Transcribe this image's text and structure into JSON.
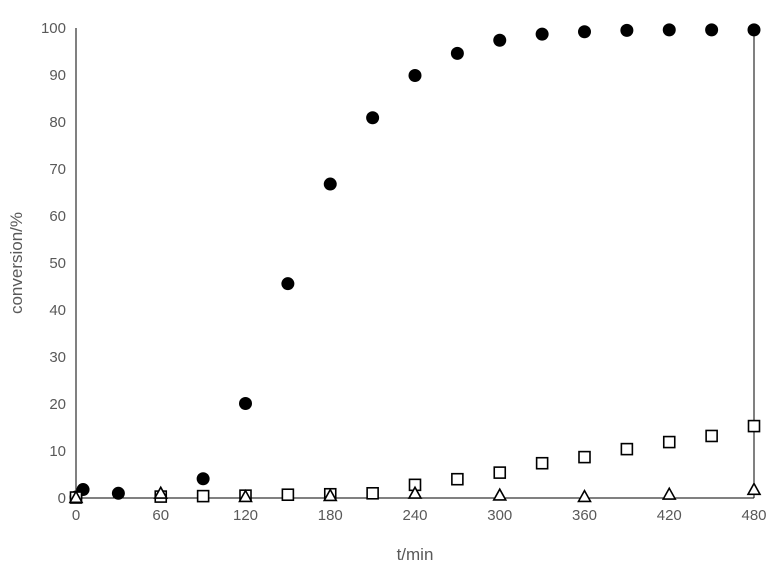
{
  "chart_data": {
    "type": "scatter",
    "title": "",
    "xlabel": "t/min",
    "ylabel": "conversion/%",
    "xlim": [
      0,
      480
    ],
    "ylim": [
      0,
      100
    ],
    "x_ticks": [
      0,
      60,
      120,
      180,
      240,
      300,
      360,
      420,
      480
    ],
    "y_ticks": [
      0,
      10,
      20,
      30,
      40,
      50,
      60,
      70,
      80,
      90,
      100
    ],
    "grid": false,
    "legend": "none",
    "series": [
      {
        "marker": "filled-circle",
        "color": "#000000",
        "points": [
          [
            0,
            0.2
          ],
          [
            5,
            1.8
          ],
          [
            30,
            1.0
          ],
          [
            90,
            4.1
          ],
          [
            120,
            20.1
          ],
          [
            150,
            45.6
          ],
          [
            180,
            66.8
          ],
          [
            210,
            80.9
          ],
          [
            240,
            89.9
          ],
          [
            270,
            94.6
          ],
          [
            300,
            97.4
          ],
          [
            330,
            98.7
          ],
          [
            360,
            99.2
          ],
          [
            390,
            99.5
          ],
          [
            420,
            99.6
          ],
          [
            450,
            99.6
          ],
          [
            480,
            99.6
          ]
        ]
      },
      {
        "marker": "open-square",
        "color": "#000000",
        "points": [
          [
            0,
            0.1
          ],
          [
            60,
            0.3
          ],
          [
            90,
            0.4
          ],
          [
            120,
            0.5
          ],
          [
            150,
            0.7
          ],
          [
            180,
            0.8
          ],
          [
            210,
            1.0
          ],
          [
            240,
            2.8
          ],
          [
            270,
            4.0
          ],
          [
            300,
            5.4
          ],
          [
            330,
            7.4
          ],
          [
            360,
            8.7
          ],
          [
            390,
            10.4
          ],
          [
            420,
            11.9
          ],
          [
            450,
            13.2
          ],
          [
            480,
            15.3
          ]
        ]
      },
      {
        "marker": "open-triangle",
        "color": "#000000",
        "points": [
          [
            0,
            0.1
          ],
          [
            60,
            1.0
          ],
          [
            120,
            0.3
          ],
          [
            180,
            0.5
          ],
          [
            240,
            1.0
          ],
          [
            300,
            0.6
          ],
          [
            360,
            0.3
          ],
          [
            420,
            0.8
          ],
          [
            480,
            1.8
          ]
        ]
      }
    ]
  }
}
